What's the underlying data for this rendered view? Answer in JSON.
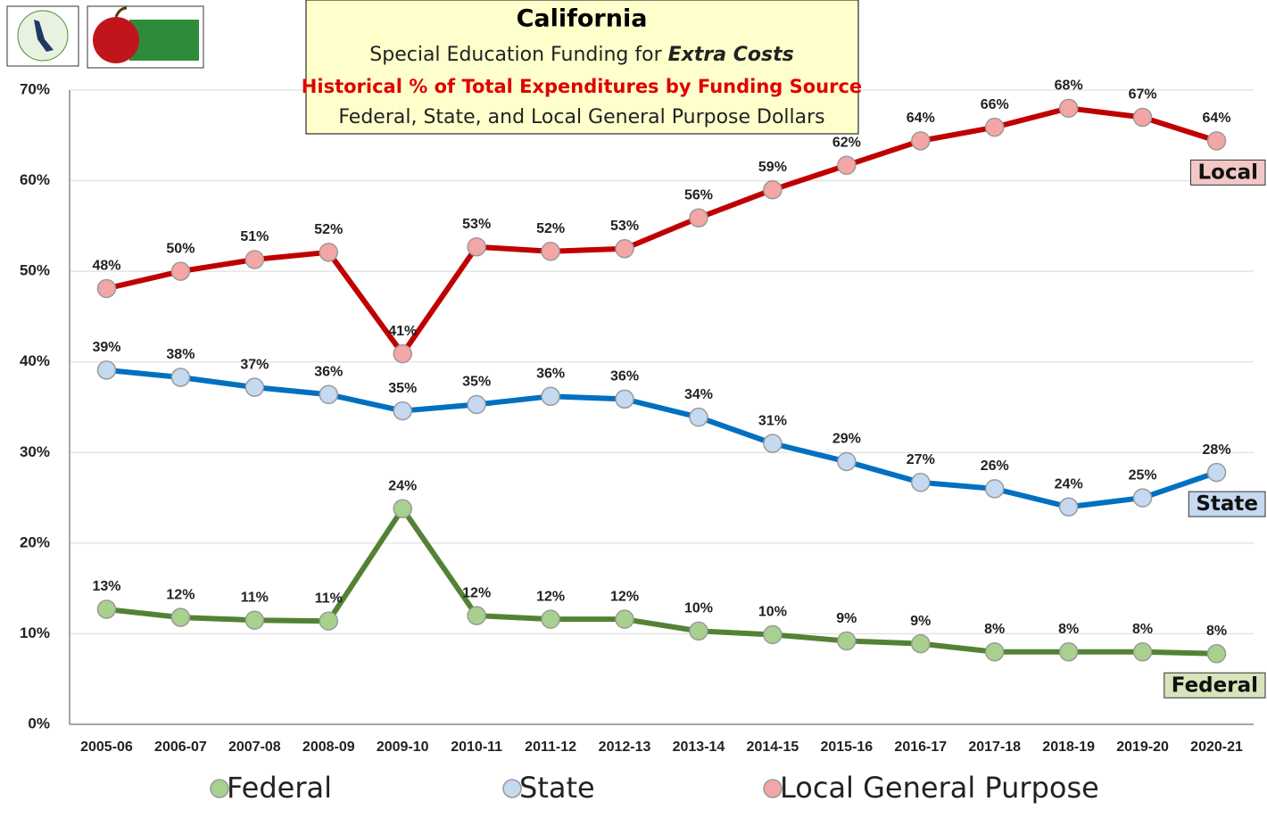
{
  "chart_data": {
    "type": "line",
    "title": "California",
    "subtitle_prefix": "Special Education Funding for",
    "subtitle_emphasis": "Extra Costs",
    "subtitle2": "Historical % of Total Expenditures by Funding Source",
    "subtitle3": "Federal, State, and Local General Purpose Dollars",
    "categories": [
      "2005-06",
      "2006-07",
      "2007-08",
      "2008-09",
      "2009-10",
      "2010-11",
      "2011-12",
      "2012-13",
      "2013-14",
      "2014-15",
      "2015-16",
      "2016-17",
      "2017-18",
      "2018-19",
      "2019-20",
      "2020-21"
    ],
    "series": [
      {
        "name": "Federal",
        "end_label": "Federal",
        "color": "#548235",
        "marker_color": "#a9d18e",
        "end_label_color": "#d8e4bc",
        "values": [
          12.7,
          11.8,
          11.5,
          11.4,
          23.8,
          12.0,
          11.6,
          11.6,
          10.3,
          9.9,
          9.2,
          8.9,
          8.0,
          8.0,
          8.0,
          7.8
        ],
        "value_labels": [
          "13%",
          "12%",
          "11%",
          "11%",
          "24%",
          "12%",
          "12%",
          "12%",
          "10%",
          "10%",
          "9%",
          "9%",
          "8%",
          "8%",
          "8%",
          "8%"
        ]
      },
      {
        "name": "State",
        "end_label": "State",
        "color": "#0070c0",
        "marker_color": "#c5d9f1",
        "end_label_color": "#c5d9f1",
        "values": [
          39.1,
          38.3,
          37.2,
          36.4,
          34.6,
          35.3,
          36.2,
          35.9,
          33.9,
          31.0,
          29.0,
          26.7,
          26.0,
          24.0,
          25.0,
          27.8
        ],
        "value_labels": [
          "39%",
          "38%",
          "37%",
          "36%",
          "35%",
          "35%",
          "36%",
          "36%",
          "34%",
          "31%",
          "29%",
          "27%",
          "26%",
          "24%",
          "25%",
          "28%"
        ]
      },
      {
        "name": "Local General Purpose",
        "end_label": "Local",
        "color": "#c00000",
        "marker_color": "#f4a6a6",
        "end_label_color": "#f4c7c7",
        "values": [
          48.1,
          50.0,
          51.3,
          52.1,
          40.9,
          52.7,
          52.2,
          52.5,
          55.9,
          59.0,
          61.7,
          64.4,
          65.9,
          68.0,
          67.0,
          64.4
        ],
        "value_labels": [
          "48%",
          "50%",
          "51%",
          "52%",
          "41%",
          "53%",
          "52%",
          "53%",
          "56%",
          "59%",
          "62%",
          "64%",
          "66%",
          "68%",
          "67%",
          "64%"
        ]
      }
    ],
    "ylim": [
      0,
      70
    ],
    "yticks": [
      {
        "value": 0,
        "label": "0%"
      },
      {
        "value": 10,
        "label": "10%"
      },
      {
        "value": 20,
        "label": "20%"
      },
      {
        "value": 30,
        "label": "30%"
      },
      {
        "value": 40,
        "label": "40%"
      },
      {
        "value": 50,
        "label": "50%"
      },
      {
        "value": 60,
        "label": "60%"
      },
      {
        "value": 70,
        "label": "70%"
      }
    ],
    "grid": true,
    "legend": "bottom"
  }
}
